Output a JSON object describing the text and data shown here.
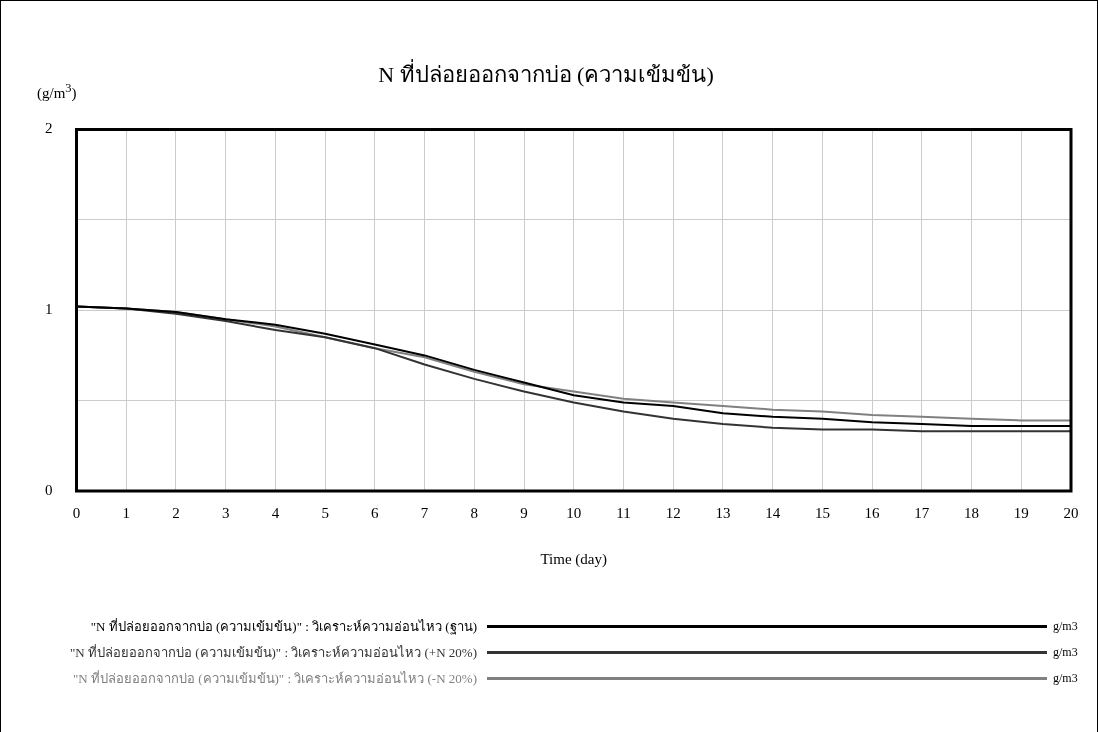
{
  "chart_data": {
    "type": "line",
    "title": "N ที่ปล่อยออกจากบ่อ (ความเข้มข้น)",
    "xlabel": "Time (day)",
    "ylabel": "(g/m$^{3}$)",
    "x": [
      0,
      1,
      2,
      3,
      4,
      5,
      6,
      7,
      8,
      9,
      10,
      11,
      12,
      13,
      14,
      15,
      16,
      17,
      18,
      19,
      20
    ],
    "xlim": [
      0,
      20
    ],
    "xticks": [
      0,
      1,
      2,
      3,
      4,
      5,
      6,
      7,
      8,
      9,
      10,
      11,
      12,
      13,
      14,
      15,
      16,
      17,
      18,
      19,
      20
    ],
    "ylim": [
      0,
      2
    ],
    "yticks": [
      0,
      {
        "value": 0.5,
        "label": null
      },
      1,
      {
        "value": 1.5,
        "label": null
      },
      2
    ],
    "grid": true,
    "legend": "bottom",
    "marker": "none",
    "line_style": "solid",
    "annotations": [
      "g/m3",
      "g/m3",
      "g/m3"
    ],
    "series": [
      {
        "name": "\"N ที่ปล่อยออกจากบ่อ (ความเข้มข้น)\" : วิเคราะห์ความอ่อนไหว (ฐาน)",
        "color": "#000000",
        "values": [
          1.02,
          1.01,
          0.99,
          0.95,
          0.92,
          0.87,
          0.81,
          0.75,
          0.67,
          0.6,
          0.53,
          0.49,
          0.47,
          0.43,
          0.41,
          0.4,
          0.38,
          0.37,
          0.36,
          0.36,
          0.36
        ]
      },
      {
        "name": "\"N ที่ปล่อยออกจากบ่อ (ความเข้มข้น)\" : วิเคราะห์ความอ่อนไหว (+N 20%)",
        "color": "#333333",
        "values": [
          1.02,
          1.01,
          0.98,
          0.94,
          0.89,
          0.85,
          0.79,
          0.7,
          0.62,
          0.55,
          0.49,
          0.44,
          0.4,
          0.37,
          0.35,
          0.34,
          0.34,
          0.33,
          0.33,
          0.33,
          0.33
        ]
      },
      {
        "name": "\"N ที่ปล่อยออกจากบ่อ (ความเข้มข้น)\" : วิเคราะห์ความอ่อนไหว (-N 20%)",
        "color": "#808080",
        "values": [
          1.02,
          1.01,
          0.99,
          0.95,
          0.91,
          0.85,
          0.79,
          0.74,
          0.66,
          0.59,
          0.55,
          0.51,
          0.49,
          0.47,
          0.45,
          0.44,
          0.42,
          0.41,
          0.4,
          0.39,
          0.39
        ]
      }
    ]
  }
}
